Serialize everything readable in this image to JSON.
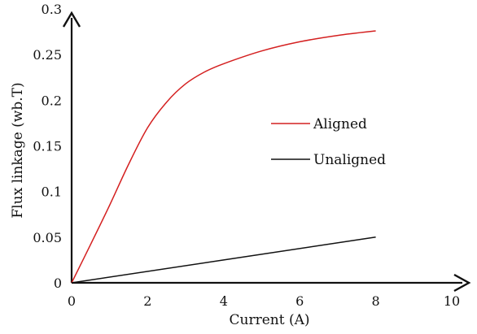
{
  "chart_data": {
    "type": "line",
    "xlabel": "Current (A)",
    "ylabel": "Flux linkage (wb.T)",
    "xlim": [
      0,
      10
    ],
    "ylim": [
      0,
      0.3
    ],
    "x_ticks": [
      "0",
      "2",
      "4",
      "6",
      "8",
      "10"
    ],
    "y_ticks": [
      "0",
      "0.05",
      "0.1",
      "0.15",
      "0.2",
      "0.25",
      "0.3"
    ],
    "grid": false,
    "legend_position": "center-right",
    "series": [
      {
        "name": "Aligned",
        "color": "#d42020",
        "x": [
          0,
          0.5,
          1,
          1.5,
          2,
          2.5,
          3,
          3.5,
          4,
          5,
          6,
          7,
          8
        ],
        "y": [
          0,
          0.042,
          0.085,
          0.13,
          0.17,
          0.198,
          0.218,
          0.231,
          0.24,
          0.254,
          0.264,
          0.271,
          0.276
        ]
      },
      {
        "name": "Unaligned",
        "color": "#111111",
        "x": [
          0,
          8
        ],
        "y": [
          0,
          0.05
        ]
      }
    ]
  }
}
